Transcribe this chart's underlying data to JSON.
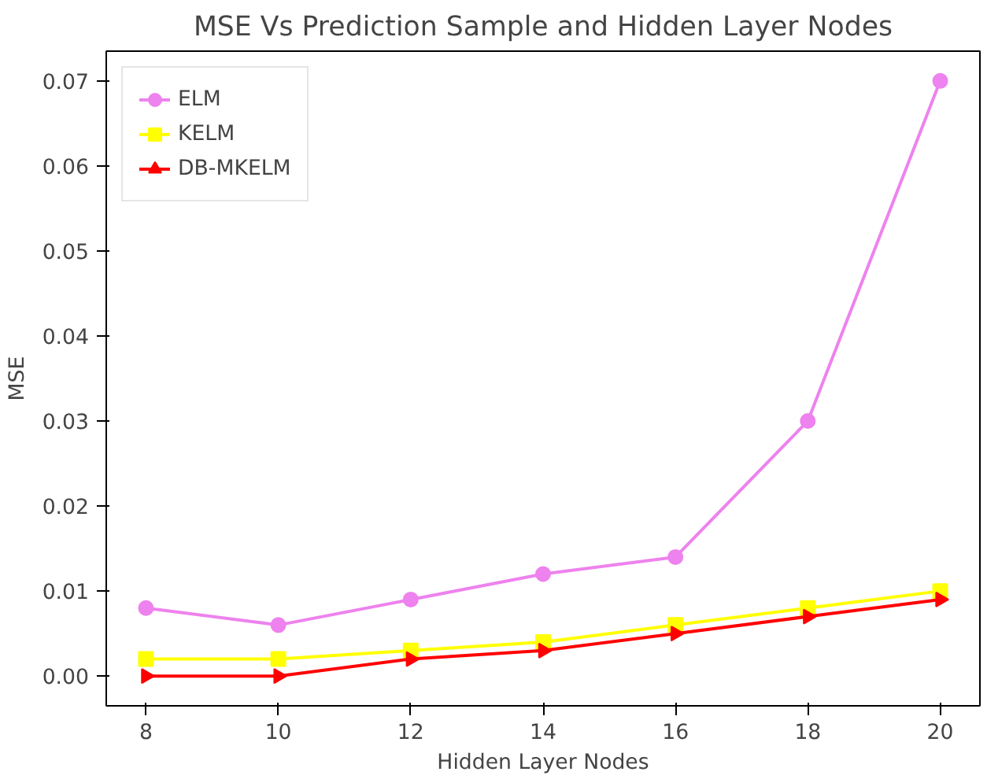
{
  "chart_data": {
    "type": "line",
    "title": "MSE Vs Prediction Sample and Hidden Layer Nodes",
    "xlabel": "Hidden Layer Nodes",
    "ylabel": "MSE",
    "x": [
      8,
      10,
      12,
      14,
      16,
      18,
      20
    ],
    "series": [
      {
        "name": "ELM",
        "color": "#ee82ee",
        "marker": "circle",
        "values": [
          0.008,
          0.006,
          0.009,
          0.012,
          0.014,
          0.03,
          0.07
        ]
      },
      {
        "name": "KELM",
        "color": "#ffff00",
        "marker": "square",
        "values": [
          0.002,
          0.002,
          0.003,
          0.004,
          0.006,
          0.008,
          0.01
        ]
      },
      {
        "name": "DB-MKELM",
        "color": "#ff0000",
        "marker": "triangle",
        "values": [
          0.0,
          0.0,
          0.002,
          0.003,
          0.005,
          0.007,
          0.009
        ]
      }
    ],
    "xlim": [
      7.4,
      20.6
    ],
    "ylim": [
      -0.0035,
      0.0735
    ],
    "xticks": [
      8,
      10,
      12,
      14,
      16,
      18,
      20
    ],
    "yticks": [
      {
        "value": 0,
        "label": "0.00"
      },
      {
        "value": 0.01,
        "label": "0.01"
      },
      {
        "value": 0.02,
        "label": "0.02"
      },
      {
        "value": 0.03,
        "label": "0.03"
      },
      {
        "value": 0.04,
        "label": "0.04"
      },
      {
        "value": 0.05,
        "label": "0.05"
      },
      {
        "value": 0.06,
        "label": "0.06"
      },
      {
        "value": 0.07,
        "label": "0.07"
      }
    ],
    "grid": false,
    "legend": "top left",
    "line_style": "solid"
  }
}
